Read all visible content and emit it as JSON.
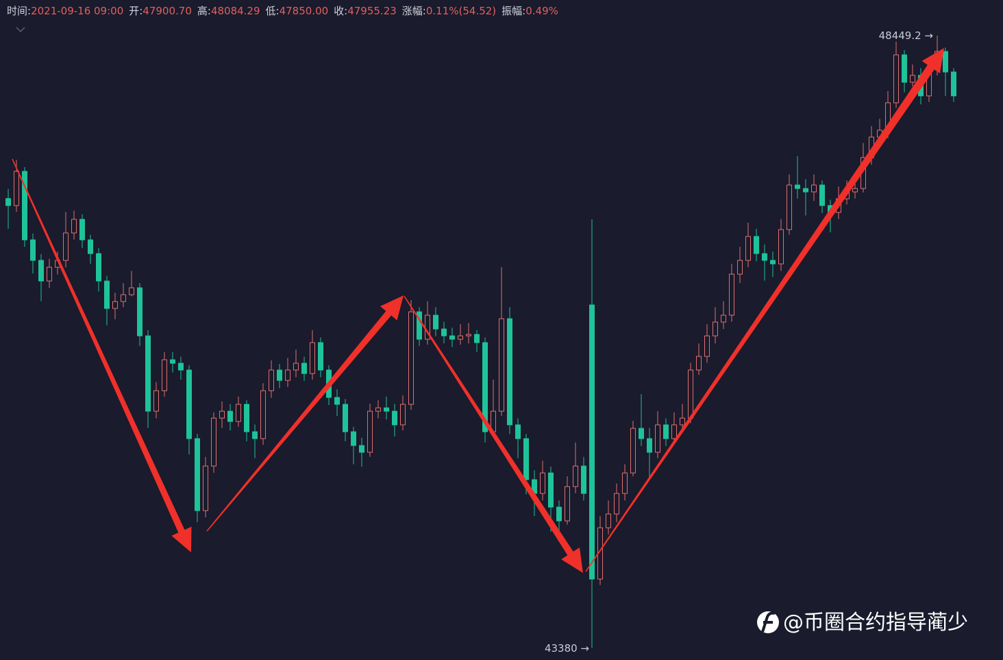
{
  "header": {
    "items": [
      {
        "label": "时间:",
        "value": "2021-09-16 09:00"
      },
      {
        "label": "开:",
        "value": "47900.70"
      },
      {
        "label": "高:",
        "value": "48084.29"
      },
      {
        "label": "低:",
        "value": "47850.00"
      },
      {
        "label": "收:",
        "value": "47955.23"
      },
      {
        "label": "涨幅:",
        "value": "0.11%(54.52)"
      },
      {
        "label": "振幅:",
        "value": "0.49%"
      }
    ]
  },
  "chart_data": {
    "type": "candlestick",
    "up_color": "#e0706e",
    "down_color": "#1fc39a",
    "ylim": [
      43279,
      48744
    ],
    "max_marker": {
      "value": 48449.2,
      "label": "48449.2 →"
    },
    "min_marker": {
      "value": 43380,
      "label": "43380 →"
    },
    "open": [
      47100,
      47042,
      47325,
      46758,
      46588,
      46417,
      46531,
      46588,
      46815,
      46928,
      46758,
      46644,
      46417,
      46190,
      46247,
      46304,
      46361,
      45963,
      45339,
      45509,
      45765,
      45736,
      45680,
      45112,
      44516,
      44885,
      45282,
      45339,
      45254,
      45396,
      45169,
      45112,
      45509,
      45680,
      45594,
      45680,
      45736,
      45651,
      45907,
      45680,
      45453,
      45396,
      45169,
      45055,
      44999,
      45339,
      45367,
      45339,
      45226,
      45396,
      46162,
      45935,
      46134,
      46020,
      45963,
      45935,
      45963,
      45975,
      45907,
      45169,
      45339,
      46105,
      45226,
      45112,
      44772,
      44658,
      44828,
      44545,
      44431,
      44715,
      44885,
      46219,
      43949,
      44374,
      44488,
      44658,
      44828,
      45197,
      45112,
      44999,
      45226,
      45112,
      45226,
      45282,
      45680,
      45793,
      45963,
      46077,
      46134,
      46474,
      46588,
      46786,
      46644,
      46588,
      46559,
      46843,
      47212,
      47183,
      47155,
      47212,
      47042,
      46985,
      47098,
      47155,
      47183,
      47439,
      47609,
      47666,
      47893,
      48290,
      48063,
      48120,
      47950,
      48177,
      48318,
      48148
    ],
    "high": [
      47180,
      47420,
      47360,
      46810,
      46640,
      46600,
      46660,
      46990,
      47000,
      46970,
      46800,
      46690,
      46460,
      46320,
      46400,
      46500,
      46400,
      46010,
      45580,
      45830,
      45830,
      45790,
      45720,
      45150,
      44960,
      45330,
      45420,
      45400,
      45460,
      45430,
      45230,
      45570,
      45760,
      45730,
      45780,
      45850,
      45790,
      46010,
      45950,
      45720,
      45520,
      45440,
      45210,
      45120,
      45400,
      45430,
      45460,
      45400,
      45470,
      46260,
      46200,
      46250,
      46200,
      46080,
      46030,
      46060,
      46070,
      46010,
      45950,
      45600,
      46531,
      46200,
      45280,
      45150,
      44850,
      44930,
      44880,
      44600,
      44800,
      45080,
      44960,
      46928,
      44470,
      44600,
      44740,
      44900,
      45260,
      45480,
      45200,
      45340,
      45280,
      45330,
      45400,
      45740,
      45900,
      46060,
      46200,
      46250,
      46560,
      46700,
      46900,
      46850,
      46720,
      46660,
      46930,
      47300,
      47450,
      47260,
      47300,
      47250,
      47090,
      47200,
      47250,
      47270,
      47560,
      47700,
      47760,
      47990,
      48400,
      48330,
      48210,
      48180,
      48260,
      48449.2,
      48350,
      48180
    ],
    "low": [
      46850,
      46990,
      46700,
      46480,
      46250,
      46360,
      46470,
      46530,
      46760,
      46690,
      46560,
      46330,
      46050,
      46100,
      46200,
      46290,
      45880,
      45200,
      45280,
      45460,
      45660,
      45600,
      44980,
      44420,
      44460,
      44830,
      45200,
      45180,
      45210,
      45090,
      44950,
      45060,
      45450,
      45530,
      45540,
      45620,
      45590,
      45600,
      45620,
      45390,
      45300,
      45090,
      44900,
      44880,
      44960,
      45280,
      45270,
      45130,
      45180,
      45350,
      45880,
      45890,
      45960,
      45900,
      45870,
      45890,
      45900,
      45830,
      45080,
      45120,
      45300,
      45150,
      44950,
      44650,
      44470,
      44600,
      44340,
      44330,
      44400,
      44660,
      44600,
      43380,
      43900,
      44320,
      44420,
      44600,
      44800,
      45050,
      44780,
      44950,
      45050,
      45080,
      45200,
      45240,
      45640,
      45740,
      45900,
      46020,
      46080,
      46400,
      46530,
      46580,
      46420,
      46450,
      46500,
      46800,
      47100,
      46960,
      47080,
      46980,
      46820,
      46930,
      47050,
      47100,
      47150,
      47380,
      47560,
      47600,
      47850,
      47980,
      48030,
      47880,
      47900,
      48120,
      47950,
      47900
    ],
    "close": [
      47042,
      47325,
      46758,
      46588,
      46417,
      46531,
      46588,
      46815,
      46928,
      46758,
      46644,
      46417,
      46190,
      46247,
      46304,
      46361,
      45963,
      45339,
      45509,
      45765,
      45736,
      45680,
      45112,
      44516,
      44885,
      45282,
      45339,
      45254,
      45396,
      45169,
      45112,
      45509,
      45680,
      45594,
      45680,
      45736,
      45651,
      45907,
      45680,
      45453,
      45396,
      45169,
      45055,
      44999,
      45339,
      45367,
      45339,
      45226,
      45396,
      46162,
      45935,
      46134,
      46020,
      45963,
      45935,
      45963,
      45975,
      45907,
      45169,
      45339,
      46105,
      45226,
      45112,
      44772,
      44658,
      44828,
      44545,
      44431,
      44715,
      44885,
      44658,
      43949,
      44374,
      44488,
      44658,
      44828,
      45197,
      45112,
      44999,
      45226,
      45112,
      45226,
      45282,
      45680,
      45793,
      45963,
      46077,
      46134,
      46474,
      46588,
      46786,
      46644,
      46588,
      46559,
      46843,
      47212,
      47183,
      47155,
      47212,
      47042,
      46985,
      47098,
      47155,
      47183,
      47439,
      47609,
      47666,
      47893,
      48290,
      48063,
      48120,
      47950,
      48177,
      48318,
      48148,
      47950
    ]
  },
  "watermark": "@币圈合约指导蔺少"
}
